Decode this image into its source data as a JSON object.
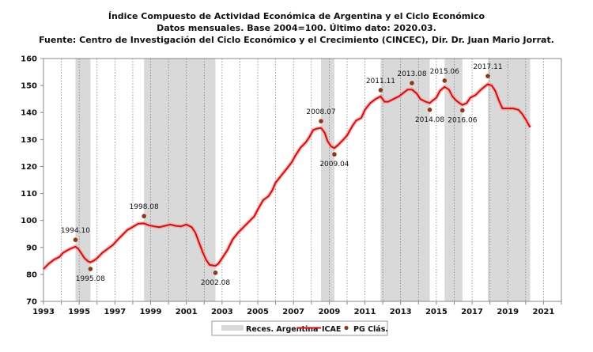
{
  "chart_data": {
    "type": "line",
    "title": "Índice Compuesto de Actividad Económica de Argentina y el Ciclo Económico",
    "subtitle": "Datos mensuales. Base 2004=100. Último dato: 2020.03.",
    "source": "Fuente: Centro de Investigación del Ciclo Económico y el Crecimiento (CINCEC), Dir. Dr. Juan Mario Jorrat.",
    "xlabel": "",
    "ylabel": "",
    "xlim": [
      1993,
      2022
    ],
    "ylim": [
      70,
      160
    ],
    "x_ticks": [
      "1993",
      "1995",
      "1997",
      "1999",
      "2001",
      "2003",
      "2005",
      "2007",
      "2009",
      "2011",
      "2013",
      "2015",
      "2017",
      "2019",
      "2021"
    ],
    "y_ticks": [
      "70",
      "80",
      "90",
      "100",
      "110",
      "120",
      "130",
      "140",
      "150",
      "160"
    ],
    "grid": "vertical dotted yearly",
    "legend": {
      "position": "bottom-center",
      "entries": [
        "Reces. Argentina",
        "ICAE",
        "PG Clás."
      ]
    },
    "colors": {
      "line": "#cc1111",
      "glow": "#f4a0a0",
      "recession": "#d9d9d9",
      "point": "#8b3a1a"
    },
    "recessions": [
      [
        1994.79,
        1995.63
      ],
      [
        1998.63,
        2002.63
      ],
      [
        2008.54,
        2009.29
      ],
      [
        2011.88,
        2014.63
      ],
      [
        2015.46,
        2016.46
      ],
      [
        2017.88,
        2020.25
      ]
    ],
    "series": [
      {
        "name": "ICAE",
        "points": [
          [
            1993.0,
            82
          ],
          [
            1993.3,
            84
          ],
          [
            1993.6,
            85.5
          ],
          [
            1993.9,
            86.5
          ],
          [
            1994.1,
            88
          ],
          [
            1994.3,
            88.8
          ],
          [
            1994.5,
            89.5
          ],
          [
            1994.79,
            90.3
          ],
          [
            1994.95,
            89.5
          ],
          [
            1995.1,
            88
          ],
          [
            1995.3,
            86
          ],
          [
            1995.5,
            84.8
          ],
          [
            1995.63,
            84.5
          ],
          [
            1995.8,
            85
          ],
          [
            1996.0,
            86
          ],
          [
            1996.3,
            88
          ],
          [
            1996.6,
            89.5
          ],
          [
            1996.9,
            91
          ],
          [
            1997.1,
            92.5
          ],
          [
            1997.4,
            94.5
          ],
          [
            1997.7,
            96.5
          ],
          [
            1997.9,
            97.2
          ],
          [
            1998.1,
            98
          ],
          [
            1998.3,
            98.8
          ],
          [
            1998.63,
            98.9
          ],
          [
            1998.9,
            98.2
          ],
          [
            1999.2,
            97.8
          ],
          [
            1999.5,
            97.5
          ],
          [
            1999.8,
            98
          ],
          [
            2000.1,
            98.5
          ],
          [
            2000.4,
            98
          ],
          [
            2000.7,
            97.8
          ],
          [
            2001.0,
            98.5
          ],
          [
            2001.3,
            97.5
          ],
          [
            2001.5,
            95.5
          ],
          [
            2001.7,
            92
          ],
          [
            2001.9,
            88.5
          ],
          [
            2002.1,
            85.5
          ],
          [
            2002.3,
            83.5
          ],
          [
            2002.63,
            83.2
          ],
          [
            2002.8,
            84
          ],
          [
            2003.0,
            86
          ],
          [
            2003.3,
            89
          ],
          [
            2003.6,
            93
          ],
          [
            2003.9,
            95.5
          ],
          [
            2004.2,
            97.5
          ],
          [
            2004.5,
            99.5
          ],
          [
            2004.8,
            101.5
          ],
          [
            2005.0,
            104
          ],
          [
            2005.3,
            107.5
          ],
          [
            2005.6,
            109
          ],
          [
            2005.8,
            111
          ],
          [
            2006.0,
            114
          ],
          [
            2006.3,
            116.5
          ],
          [
            2006.6,
            119
          ],
          [
            2006.9,
            121.5
          ],
          [
            2007.1,
            124
          ],
          [
            2007.4,
            127
          ],
          [
            2007.7,
            129
          ],
          [
            2007.9,
            131
          ],
          [
            2008.1,
            133.5
          ],
          [
            2008.3,
            134
          ],
          [
            2008.54,
            134.3
          ],
          [
            2008.75,
            132.5
          ],
          [
            2008.9,
            129.5
          ],
          [
            2009.1,
            127.5
          ],
          [
            2009.29,
            126.8
          ],
          [
            2009.5,
            128
          ],
          [
            2009.8,
            130
          ],
          [
            2010.0,
            131.5
          ],
          [
            2010.3,
            135
          ],
          [
            2010.5,
            137
          ],
          [
            2010.8,
            138
          ],
          [
            2011.0,
            141
          ],
          [
            2011.3,
            143.5
          ],
          [
            2011.6,
            145
          ],
          [
            2011.88,
            146
          ],
          [
            2012.1,
            144
          ],
          [
            2012.3,
            144
          ],
          [
            2012.6,
            145
          ],
          [
            2012.9,
            146
          ],
          [
            2013.1,
            147
          ],
          [
            2013.4,
            148.5
          ],
          [
            2013.63,
            148.5
          ],
          [
            2013.9,
            147
          ],
          [
            2014.1,
            145
          ],
          [
            2014.4,
            144
          ],
          [
            2014.63,
            143.5
          ],
          [
            2014.8,
            144.5
          ],
          [
            2015.0,
            145.5
          ],
          [
            2015.2,
            148
          ],
          [
            2015.46,
            149.5
          ],
          [
            2015.7,
            148.5
          ],
          [
            2015.9,
            146
          ],
          [
            2016.1,
            144.5
          ],
          [
            2016.3,
            143.5
          ],
          [
            2016.46,
            142.8
          ],
          [
            2016.7,
            143.5
          ],
          [
            2016.9,
            145.5
          ],
          [
            2017.2,
            146.5
          ],
          [
            2017.5,
            148.5
          ],
          [
            2017.88,
            150.5
          ],
          [
            2018.1,
            150
          ],
          [
            2018.3,
            148
          ],
          [
            2018.5,
            144.5
          ],
          [
            2018.7,
            141.5
          ],
          [
            2019.0,
            141.5
          ],
          [
            2019.3,
            141.5
          ],
          [
            2019.6,
            141
          ],
          [
            2019.8,
            139.5
          ],
          [
            2020.0,
            137.5
          ],
          [
            2020.25,
            134.5
          ]
        ]
      }
    ],
    "turning_points": [
      {
        "label": "1994.10",
        "x": 1994.79,
        "y": 92.8,
        "label_pos": "above"
      },
      {
        "label": "1995.08",
        "x": 1995.63,
        "y": 82.0,
        "label_pos": "below"
      },
      {
        "label": "1998.08",
        "x": 1998.63,
        "y": 101.6,
        "label_pos": "above"
      },
      {
        "label": "2002.08",
        "x": 2002.63,
        "y": 80.6,
        "label_pos": "below"
      },
      {
        "label": "2008.07",
        "x": 2008.54,
        "y": 136.8,
        "label_pos": "above"
      },
      {
        "label": "2009.04",
        "x": 2009.29,
        "y": 124.5,
        "label_pos": "below"
      },
      {
        "label": "2011.11",
        "x": 2011.88,
        "y": 148.3,
        "label_pos": "above"
      },
      {
        "label": "2013.08",
        "x": 2013.63,
        "y": 150.9,
        "label_pos": "above"
      },
      {
        "label": "2014.08",
        "x": 2014.63,
        "y": 141.0,
        "label_pos": "below"
      },
      {
        "label": "2015.06",
        "x": 2015.46,
        "y": 151.8,
        "label_pos": "above"
      },
      {
        "label": "2016.06",
        "x": 2016.46,
        "y": 140.8,
        "label_pos": "below"
      },
      {
        "label": "2017.11",
        "x": 2017.88,
        "y": 153.5,
        "label_pos": "above"
      }
    ]
  }
}
